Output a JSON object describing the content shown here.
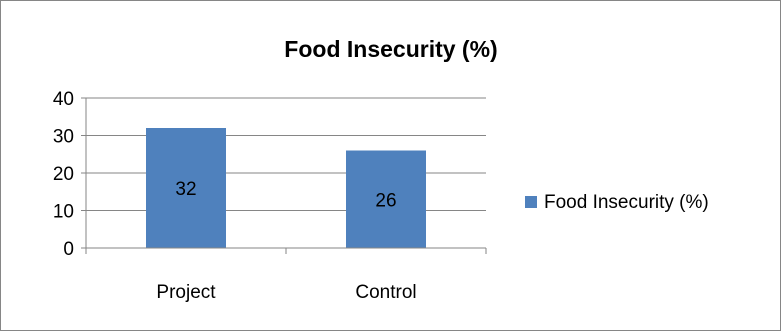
{
  "chart_data": {
    "type": "bar",
    "title": "Food Insecurity (%)",
    "categories": [
      "Project",
      "Control"
    ],
    "series": [
      {
        "name": "Food Insecurity (%)",
        "values": [
          32,
          26
        ],
        "color": "#4f81bd"
      }
    ],
    "ylim": [
      0,
      40
    ],
    "yticks": [
      0,
      10,
      20,
      30,
      40
    ],
    "grid": true,
    "data_labels": true,
    "legend_position": "right",
    "xlabel": "",
    "ylabel": ""
  }
}
